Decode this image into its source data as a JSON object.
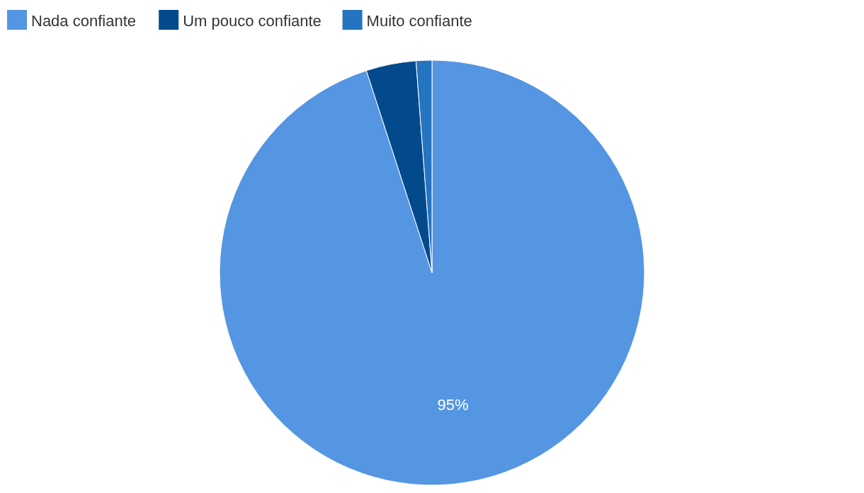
{
  "chart_data": {
    "type": "pie",
    "categories": [
      "Nada confiante",
      "Um pouco confiante",
      "Muito confiante"
    ],
    "values": [
      95,
      3.8,
      1.2
    ],
    "colors": [
      "#5596e2",
      "#034a8d",
      "#2474c0"
    ],
    "value_labels": [
      "95%",
      null,
      null
    ],
    "legend": "top left"
  }
}
